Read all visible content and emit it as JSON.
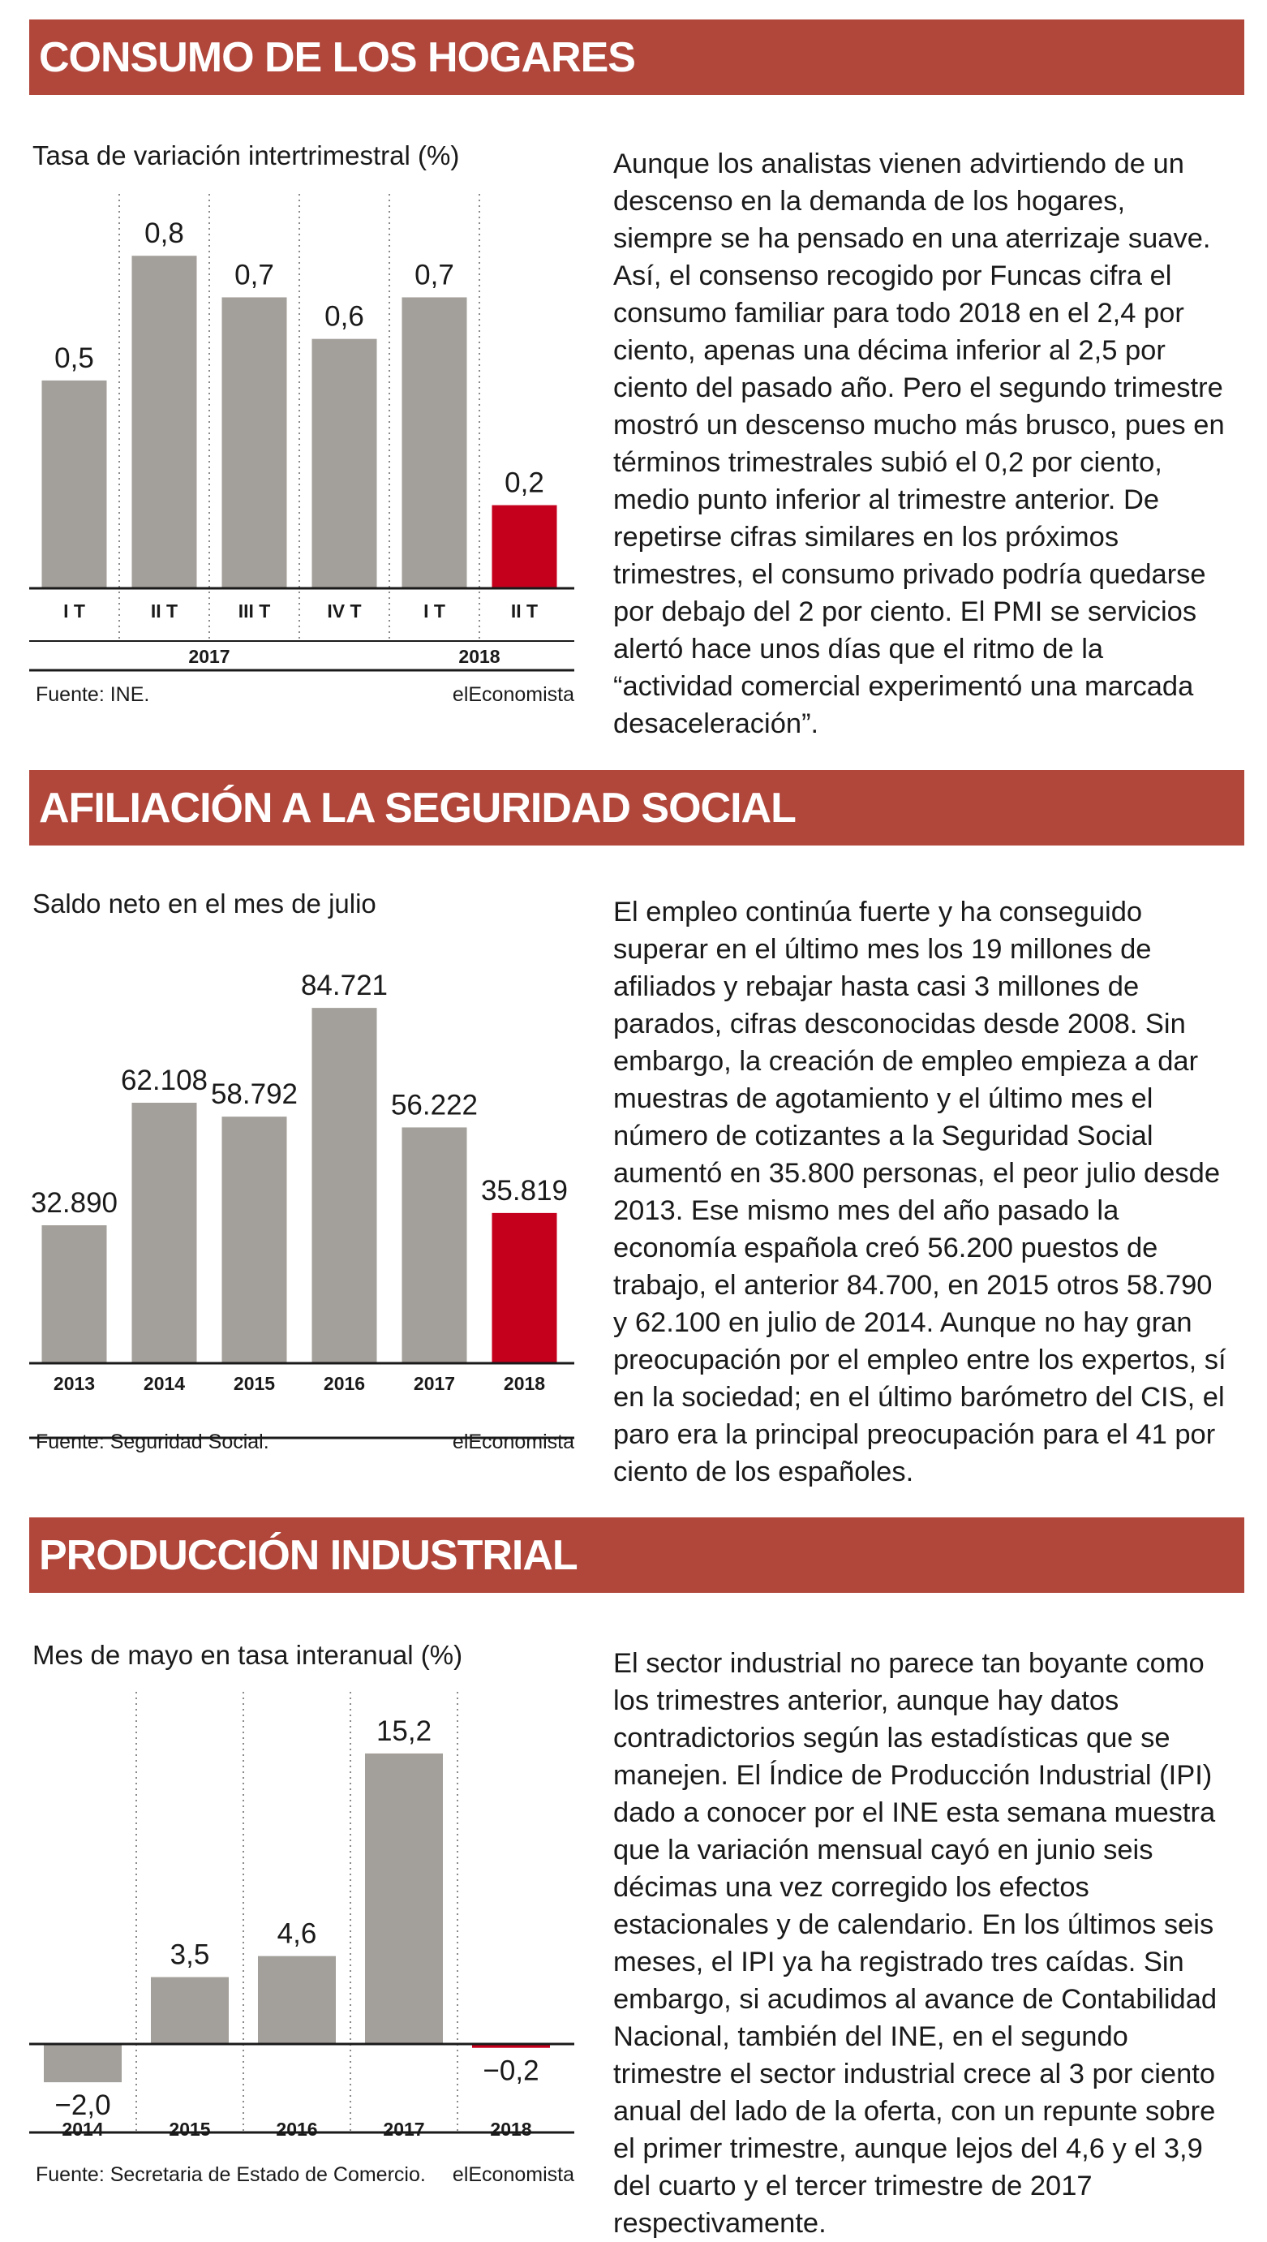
{
  "sections": [
    {
      "title": "CONSUMO DE LOS HOGARES",
      "subtitle": "Tasa de variación intertrimestral (%)",
      "source": "Fuente: INE.",
      "brand": "elEconomista",
      "text": "Aunque los analistas vienen advirtiendo de un descenso en la demanda de los hogares, siempre se ha pensado en una aterrizaje suave. Así, el consenso recogido por Funcas cifra el consumo familiar para todo 2018 en el 2,4 por ciento, apenas una décima inferior al 2,5 por ciento del pasado año. Pero el segundo trimestre mostró un descenso mucho más brusco, pues en términos trimestrales subió el 0,2 por ciento, medio punto inferior al trimestre anterior. De repetirse cifras similares en los próximos trimestres, el consumo privado podría quedarse por debajo del 2 por ciento. El PMI se servicios alertó hace unos días que el ritmo de la “actividad comercial experimentó una marcada desaceleración”."
    },
    {
      "title": "AFILIACIÓN A LA SEGURIDAD SOCIAL",
      "subtitle": "Saldo neto en el mes de julio",
      "source": "Fuente: Seguridad Social.",
      "brand": "elEconomista",
      "text": "El empleo continúa fuerte y ha conseguido superar en el último mes los 19 millones de afiliados y rebajar hasta casi 3 millones de parados, cifras desconocidas desde 2008. Sin embargo, la creación de empleo empieza a dar muestras de agotamiento y el último mes el número de cotizantes a la Seguridad Social aumentó en 35.800 personas, el peor julio desde 2013. Ese mismo mes del año pasado la economía española creó 56.200 puestos de trabajo, el anterior 84.700, en 2015 otros 58.790 y 62.100 en julio de 2014. Aunque no hay gran preocupación por el empleo entre los expertos, sí en la sociedad; en el último barómetro del CIS, el paro era la principal preocupación para el 41 por ciento de los españoles."
    },
    {
      "title": "PRODUCCIÓN INDUSTRIAL",
      "subtitle": "Mes de mayo en tasa interanual (%)",
      "source": "Fuente: Secretaria de Estado de Comercio.",
      "brand": "elEconomista",
      "text": "El sector industrial no parece tan boyante como los trimestres anterior, aunque hay datos contradictorios según las estadísticas que se manejen. El Índice de Producción Industrial (IPI) dado a conocer por el INE esta semana muestra que la variación mensual cayó en junio seis décimas una vez corregido los efectos estacionales y de calendario. En los últimos seis meses, el IPI ya ha registrado tres caídas. Sin embargo, si acudimos al avance de Contabilidad Nacional, también del INE, en el segundo trimestre el sector industrial crece al 3 por ciento anual del lado de la oferta, con un repunte sobre el primer trimestre, aunque lejos del 4,6 y el 3,9  del cuarto y el tercer trimestre de 2017 respectivamente."
    }
  ],
  "chart_data": [
    {
      "type": "bar",
      "title": "Tasa de variación intertrimestral (%)",
      "categories": [
        "I T",
        "II T",
        "III T",
        "IV T",
        "I T",
        "II T"
      ],
      "groups": [
        {
          "label": "2017",
          "span": 4
        },
        {
          "label": "2018",
          "span": 2
        }
      ],
      "values": [
        0.5,
        0.8,
        0.7,
        0.6,
        0.7,
        0.2
      ],
      "value_labels": [
        "0,5",
        "0,8",
        "0,7",
        "0,6",
        "0,7",
        "0,2"
      ],
      "ylim": [
        0,
        0.9
      ],
      "grid": "vertical dotted separators",
      "colors": {
        "bar": "#a39f9a",
        "highlight": "#c4001d"
      },
      "highlight_index": 5
    },
    {
      "type": "bar",
      "title": "Saldo neto en el mes de julio",
      "categories": [
        "2013",
        "2014",
        "2015",
        "2016",
        "2017",
        "2018"
      ],
      "values": [
        32890,
        62108,
        58792,
        84721,
        56222,
        35819
      ],
      "value_labels": [
        "32.890",
        "62.108",
        "58.792",
        "84.721",
        "56.222",
        "35.819"
      ],
      "ylim": [
        0,
        95000
      ],
      "grid": "none",
      "colors": {
        "bar": "#a39f9a",
        "highlight": "#c4001d"
      },
      "highlight_index": 5
    },
    {
      "type": "bar",
      "title": "Mes de mayo en tasa interanual (%)",
      "categories": [
        "2014",
        "2015",
        "2016",
        "2017",
        "2018"
      ],
      "values": [
        -2.0,
        3.5,
        4.6,
        15.2,
        -0.2
      ],
      "value_labels": [
        "−2,0",
        "3,5",
        "4,6",
        "15,2",
        "−0,2"
      ],
      "ylim": [
        -6.5,
        18
      ],
      "grid": "vertical dotted separators",
      "colors": {
        "bar": "#a39f9a",
        "highlight": "#c4001d"
      },
      "highlight_index": 4
    }
  ]
}
